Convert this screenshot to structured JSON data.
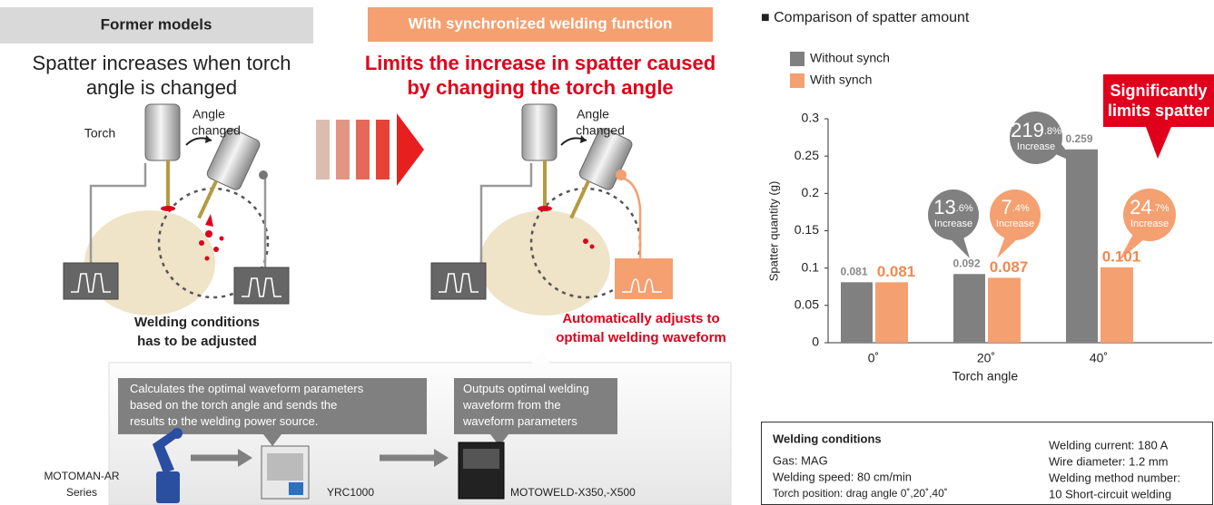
{
  "left": {
    "former_header": "Former models",
    "former_caption": [
      "Spatter increases when torch",
      "angle is changed"
    ],
    "torch_label": "Torch",
    "angle_label": [
      "Angle",
      "changed"
    ],
    "former_note": [
      "Welding conditions",
      "has to be adjusted"
    ],
    "sync_header": "With synchronized welding function",
    "sync_caption": [
      "Limits the increase in spatter caused",
      "by changing the torch angle"
    ],
    "sync_angle_label": [
      "Angle",
      "changed"
    ],
    "sync_note": [
      "Automatically adjusts to",
      "optimal welding waveform"
    ]
  },
  "flow": {
    "callouts": [
      [
        "Calculates the optimal waveform parameters",
        "based on the torch angle and sends the",
        "results to the welding power source."
      ],
      [
        "Outputs optimal welding",
        "waveform from the",
        "waveform parameters"
      ]
    ],
    "devices": [
      [
        "MOTOMAN-AR",
        "Series"
      ],
      [
        "YRC1000"
      ],
      [
        "MOTOWELD-X350,-X500"
      ]
    ]
  },
  "chart_data": {
    "type": "bar",
    "title": "■ Comparison of spatter amount",
    "y_label": "Spatter quantity (g)",
    "x_label": "Torch angle",
    "categories": [
      "0˚",
      "20˚",
      "40˚"
    ],
    "series": [
      {
        "name": "Without synch",
        "color": "#808080",
        "values": [
          0.081,
          0.092,
          0.259
        ]
      },
      {
        "name": "With synch",
        "color": "#f4a070",
        "values": [
          0.081,
          0.087,
          0.101
        ]
      }
    ],
    "ylim": [
      0,
      0.3
    ],
    "yticks": [
      0,
      0.05,
      0.1,
      0.15,
      0.2,
      0.25,
      0.3
    ],
    "legend": "top-left",
    "annotations": [
      {
        "whole": "13",
        "fraction": ".6%",
        "note": "Increase"
      },
      {
        "whole": "7",
        "fraction": ".4%",
        "note": "Increase"
      },
      {
        "whole": "219",
        "fraction": ".8%",
        "note": "Increase"
      },
      {
        "whole": "24",
        "fraction": ".7%",
        "note": "Increase"
      }
    ],
    "callout": [
      "Significantly",
      "limits spatter"
    ]
  },
  "conditions": {
    "title": "Welding conditions",
    "left": [
      "Gas: MAG",
      "Welding speed: 80 cm/min",
      "Torch position: drag angle 0˚,20˚,40˚"
    ],
    "right": [
      "Welding current: 180 A",
      "Wire diameter: 1.2 mm",
      "Welding method number:",
      "10 Short-circuit welding"
    ]
  }
}
